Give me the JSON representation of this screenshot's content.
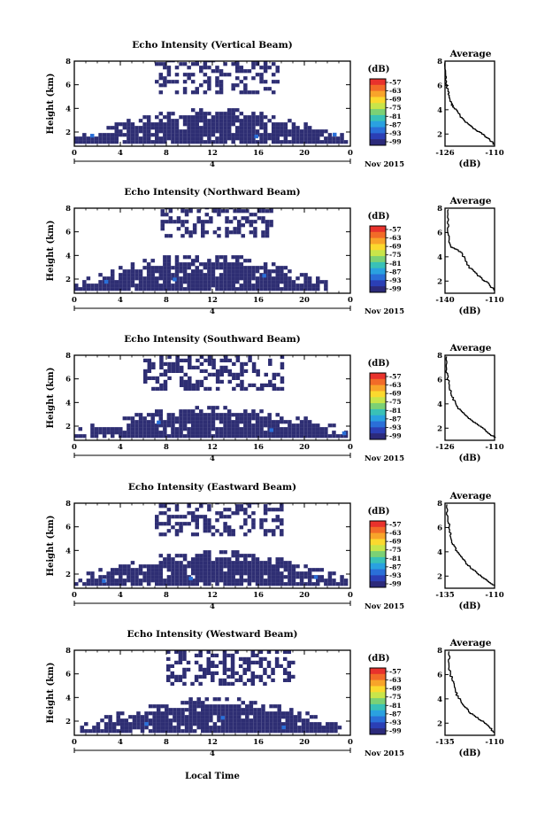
{
  "figure": {
    "x_axis_label": "Local Time"
  },
  "chart_data": [
    {
      "type": "heatmap",
      "title": "Echo Intensity (Vertical Beam)",
      "ylabel": "Height (km)",
      "x_ticks": [
        "0",
        "4",
        "8",
        "12",
        "16",
        "20",
        "0"
      ],
      "y_ticks": [
        "2",
        "4",
        "6",
        "8"
      ],
      "xlim": [
        0,
        24
      ],
      "ylim": [
        0.8,
        8
      ],
      "date_marker": "4",
      "date_label": "Nov 2015",
      "colorbar": {
        "unit": "(dB)",
        "ticks": [
          "-57",
          "-63",
          "-69",
          "-75",
          "-81",
          "-87",
          "-93",
          "-99"
        ],
        "colors": [
          "#e8322c",
          "#f26b28",
          "#f8a42a",
          "#fbd92e",
          "#c8e54a",
          "#7bd175",
          "#39c1b7",
          "#2aa1e0",
          "#2a6fd8",
          "#2b3fb5",
          "#2c2a7a"
        ]
      },
      "lower_layer": {
        "x_start": 0,
        "x_end": 23.5,
        "top_km": 3.8
      },
      "upper_layer": {
        "x_start": 7,
        "x_end": 17.5,
        "bottom_km": 5.2,
        "top_km": 8
      },
      "average_profile": {
        "title": "Average",
        "xlabel": "(dB)",
        "xlim": [
          -126,
          -110
        ],
        "x_ticks": [
          "-126",
          "-110"
        ],
        "ylim": [
          1,
          8
        ],
        "y_ticks": [
          "2",
          "4",
          "6",
          "8"
        ],
        "points": [
          [
            -126,
            7.9
          ],
          [
            -125.8,
            6.8
          ],
          [
            -125.5,
            6.1
          ],
          [
            -125,
            5.5
          ],
          [
            -124.6,
            5.0
          ],
          [
            -124.2,
            4.6
          ],
          [
            -123.5,
            4.3
          ],
          [
            -122.5,
            4.0
          ],
          [
            -121.5,
            3.6
          ],
          [
            -120.2,
            3.2
          ],
          [
            -119.0,
            2.9
          ],
          [
            -117.5,
            2.6
          ],
          [
            -116.0,
            2.3
          ],
          [
            -114.0,
            2.0
          ],
          [
            -112.5,
            1.7
          ],
          [
            -111.2,
            1.4
          ],
          [
            -110,
            1.1
          ]
        ]
      }
    },
    {
      "type": "heatmap",
      "title": "Echo Intensity (Northward Beam)",
      "ylabel": "Height (km)",
      "x_ticks": [
        "0",
        "4",
        "8",
        "12",
        "16",
        "20",
        "0"
      ],
      "y_ticks": [
        "2",
        "4",
        "6",
        "8"
      ],
      "xlim": [
        0,
        24
      ],
      "ylim": [
        0.8,
        8
      ],
      "date_marker": "4",
      "date_label": "Nov 2015",
      "colorbar": {
        "unit": "(dB)",
        "ticks": [
          "-57",
          "-63",
          "-69",
          "-75",
          "-81",
          "-87",
          "-93",
          "-99"
        ],
        "colors": [
          "#e8322c",
          "#f26b28",
          "#f8a42a",
          "#fbd92e",
          "#c8e54a",
          "#7bd175",
          "#39c1b7",
          "#2aa1e0",
          "#2a6fd8",
          "#2b3fb5",
          "#2c2a7a"
        ]
      },
      "lower_layer": {
        "x_start": 0,
        "x_end": 22,
        "top_km": 4.0
      },
      "upper_layer": {
        "x_start": 7.5,
        "x_end": 17,
        "bottom_km": 5.5,
        "top_km": 8
      },
      "average_profile": {
        "title": "Average",
        "xlabel": "(dB)",
        "xlim": [
          -140,
          -110
        ],
        "x_ticks": [
          "-140",
          "-110"
        ],
        "ylim": [
          1,
          8
        ],
        "y_ticks": [
          "2",
          "4",
          "6",
          "8"
        ],
        "points": [
          [
            -138,
            7.9
          ],
          [
            -138.5,
            7.0
          ],
          [
            -138,
            6.0
          ],
          [
            -137.5,
            5.2
          ],
          [
            -136.5,
            4.8
          ],
          [
            -133,
            4.6
          ],
          [
            -130,
            4.3
          ],
          [
            -128,
            3.8
          ],
          [
            -126,
            3.2
          ],
          [
            -122,
            2.7
          ],
          [
            -118,
            2.2
          ],
          [
            -114,
            1.8
          ],
          [
            -110,
            1.2
          ]
        ]
      }
    },
    {
      "type": "heatmap",
      "title": "Echo Intensity (Southward Beam)",
      "ylabel": "Height (km)",
      "x_ticks": [
        "0",
        "4",
        "8",
        "12",
        "16",
        "20",
        "0"
      ],
      "y_ticks": [
        "2",
        "4",
        "6",
        "8"
      ],
      "xlim": [
        0,
        24
      ],
      "ylim": [
        0.8,
        8
      ],
      "date_marker": "4",
      "date_label": "Nov 2015",
      "colorbar": {
        "unit": "(dB)",
        "ticks": [
          "-57",
          "-63",
          "-69",
          "-75",
          "-81",
          "-87",
          "-93",
          "-99"
        ],
        "colors": [
          "#e8322c",
          "#f26b28",
          "#f8a42a",
          "#fbd92e",
          "#c8e54a",
          "#7bd175",
          "#39c1b7",
          "#2aa1e0",
          "#2a6fd8",
          "#2b3fb5",
          "#2c2a7a"
        ]
      },
      "lower_layer": {
        "x_start": 0,
        "x_end": 23.8,
        "top_km": 3.5
      },
      "upper_layer": {
        "x_start": 6,
        "x_end": 18,
        "bottom_km": 5.0,
        "top_km": 8
      },
      "average_profile": {
        "title": "Average",
        "xlabel": "(dB)",
        "xlim": [
          -126,
          -110
        ],
        "x_ticks": [
          "-126",
          "-110"
        ],
        "ylim": [
          1,
          8
        ],
        "y_ticks": [
          "2",
          "4",
          "6",
          "8"
        ],
        "points": [
          [
            -125.5,
            7.9
          ],
          [
            -125.5,
            6.8
          ],
          [
            -125,
            6.0
          ],
          [
            -124.5,
            5.3
          ],
          [
            -124,
            4.7
          ],
          [
            -123,
            4.2
          ],
          [
            -122,
            3.7
          ],
          [
            -120.5,
            3.3
          ],
          [
            -119,
            2.9
          ],
          [
            -117,
            2.5
          ],
          [
            -114.5,
            2.1
          ],
          [
            -112,
            1.6
          ],
          [
            -110,
            1.2
          ]
        ]
      }
    },
    {
      "type": "heatmap",
      "title": "Echo Intensity (Eastward Beam)",
      "ylabel": "Height (km)",
      "x_ticks": [
        "0",
        "4",
        "8",
        "12",
        "16",
        "20",
        "0"
      ],
      "y_ticks": [
        "2",
        "4",
        "6",
        "8"
      ],
      "xlim": [
        0,
        24
      ],
      "ylim": [
        0.8,
        8
      ],
      "date_marker": "4",
      "date_label": "Nov 2015",
      "colorbar": {
        "unit": "(dB)",
        "ticks": [
          "-57",
          "-63",
          "-69",
          "-75",
          "-81",
          "-87",
          "-93",
          "-99"
        ],
        "colors": [
          "#e8322c",
          "#f26b28",
          "#f8a42a",
          "#fbd92e",
          "#c8e54a",
          "#7bd175",
          "#39c1b7",
          "#2aa1e0",
          "#2a6fd8",
          "#2b3fb5",
          "#2c2a7a"
        ]
      },
      "lower_layer": {
        "x_start": 0,
        "x_end": 23.5,
        "top_km": 3.8
      },
      "upper_layer": {
        "x_start": 7,
        "x_end": 18,
        "bottom_km": 5.2,
        "top_km": 8
      },
      "average_profile": {
        "title": "Average",
        "xlabel": "(dB)",
        "xlim": [
          -135,
          -110
        ],
        "x_ticks": [
          "-135",
          "-110"
        ],
        "ylim": [
          1,
          8
        ],
        "y_ticks": [
          "2",
          "4",
          "6",
          "8"
        ],
        "points": [
          [
            -134,
            7.9
          ],
          [
            -134,
            6.8
          ],
          [
            -133,
            6.2
          ],
          [
            -132.5,
            5.6
          ],
          [
            -132,
            5.0
          ],
          [
            -130.5,
            4.5
          ],
          [
            -129,
            4.0
          ],
          [
            -126.5,
            3.5
          ],
          [
            -124,
            3.0
          ],
          [
            -121,
            2.5
          ],
          [
            -117,
            2.0
          ],
          [
            -113.5,
            1.6
          ],
          [
            -110,
            1.2
          ]
        ]
      }
    },
    {
      "type": "heatmap",
      "title": "Echo Intensity (Westward Beam)",
      "ylabel": "Height (km)",
      "x_ticks": [
        "0",
        "4",
        "8",
        "12",
        "16",
        "20",
        "0"
      ],
      "y_ticks": [
        "2",
        "4",
        "6",
        "8"
      ],
      "xlim": [
        0,
        24
      ],
      "ylim": [
        0.8,
        8
      ],
      "date_marker": "4",
      "date_label": "Nov 2015",
      "colorbar": {
        "unit": "(dB)",
        "ticks": [
          "-57",
          "-63",
          "-69",
          "-75",
          "-81",
          "-87",
          "-93",
          "-99"
        ],
        "colors": [
          "#e8322c",
          "#f26b28",
          "#f8a42a",
          "#fbd92e",
          "#c8e54a",
          "#7bd175",
          "#39c1b7",
          "#2aa1e0",
          "#2a6fd8",
          "#2b3fb5",
          "#2c2a7a"
        ]
      },
      "lower_layer": {
        "x_start": 0.5,
        "x_end": 23.5,
        "top_km": 3.8
      },
      "upper_layer": {
        "x_start": 8,
        "x_end": 19,
        "bottom_km": 5.0,
        "top_km": 8
      },
      "average_profile": {
        "title": "Average",
        "xlabel": "(dB)",
        "xlim": [
          -135,
          -110
        ],
        "x_ticks": [
          "-135",
          "-110"
        ],
        "ylim": [
          1,
          8
        ],
        "y_ticks": [
          "2",
          "4",
          "6",
          "8"
        ],
        "points": [
          [
            -133,
            7.9
          ],
          [
            -133,
            6.8
          ],
          [
            -132.5,
            6.0
          ],
          [
            -131,
            5.5
          ],
          [
            -130,
            4.8
          ],
          [
            -129,
            4.3
          ],
          [
            -127,
            3.8
          ],
          [
            -125,
            3.3
          ],
          [
            -122,
            2.8
          ],
          [
            -118.5,
            2.4
          ],
          [
            -115,
            2.0
          ],
          [
            -112.5,
            1.6
          ],
          [
            -110,
            1.2
          ]
        ]
      }
    }
  ]
}
